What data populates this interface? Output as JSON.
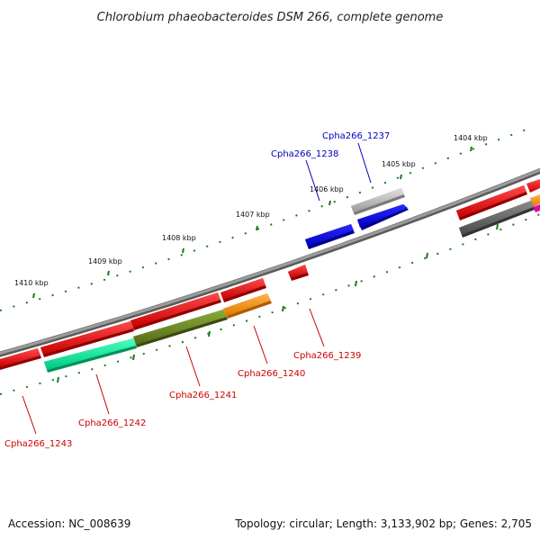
{
  "title": "Chlorobium phaeobacteroides DSM 266, complete genome",
  "footer": {
    "accession": "Accession: NC_008639",
    "summary": "Topology: circular; Length: 3,133,902 bp; Genes: 2,705"
  },
  "scale": {
    "labels": [
      "1404 kbp",
      "1405 kbp",
      "1406 kbp",
      "1407 kbp",
      "1408 kbp",
      "1409 kbp",
      "1410 kbp"
    ]
  },
  "genes": {
    "plus": [
      {
        "label": "Cpha266_1237",
        "color": "#c0c0c0"
      },
      {
        "label": "Cpha266_1238",
        "color": "#0000ee"
      }
    ],
    "minus": [
      {
        "label": "Cpha266_1239",
        "color": "#ee0000"
      },
      {
        "label": "Cpha266_1240",
        "color": "#ff9900"
      },
      {
        "label": "Cpha266_1241",
        "color": "#6b8e23"
      },
      {
        "label": "Cpha266_1242",
        "color": "#00ee99"
      },
      {
        "label": "Cpha266_1243",
        "color": "#ee0000"
      }
    ]
  },
  "colors": {
    "label_plus": "#0000bb",
    "label_minus": "#cc0000",
    "backbone": "#808080",
    "ticks": "#1a7a1a",
    "unlabeled_gene": "#ee0000",
    "gray_gene": "#606060"
  }
}
